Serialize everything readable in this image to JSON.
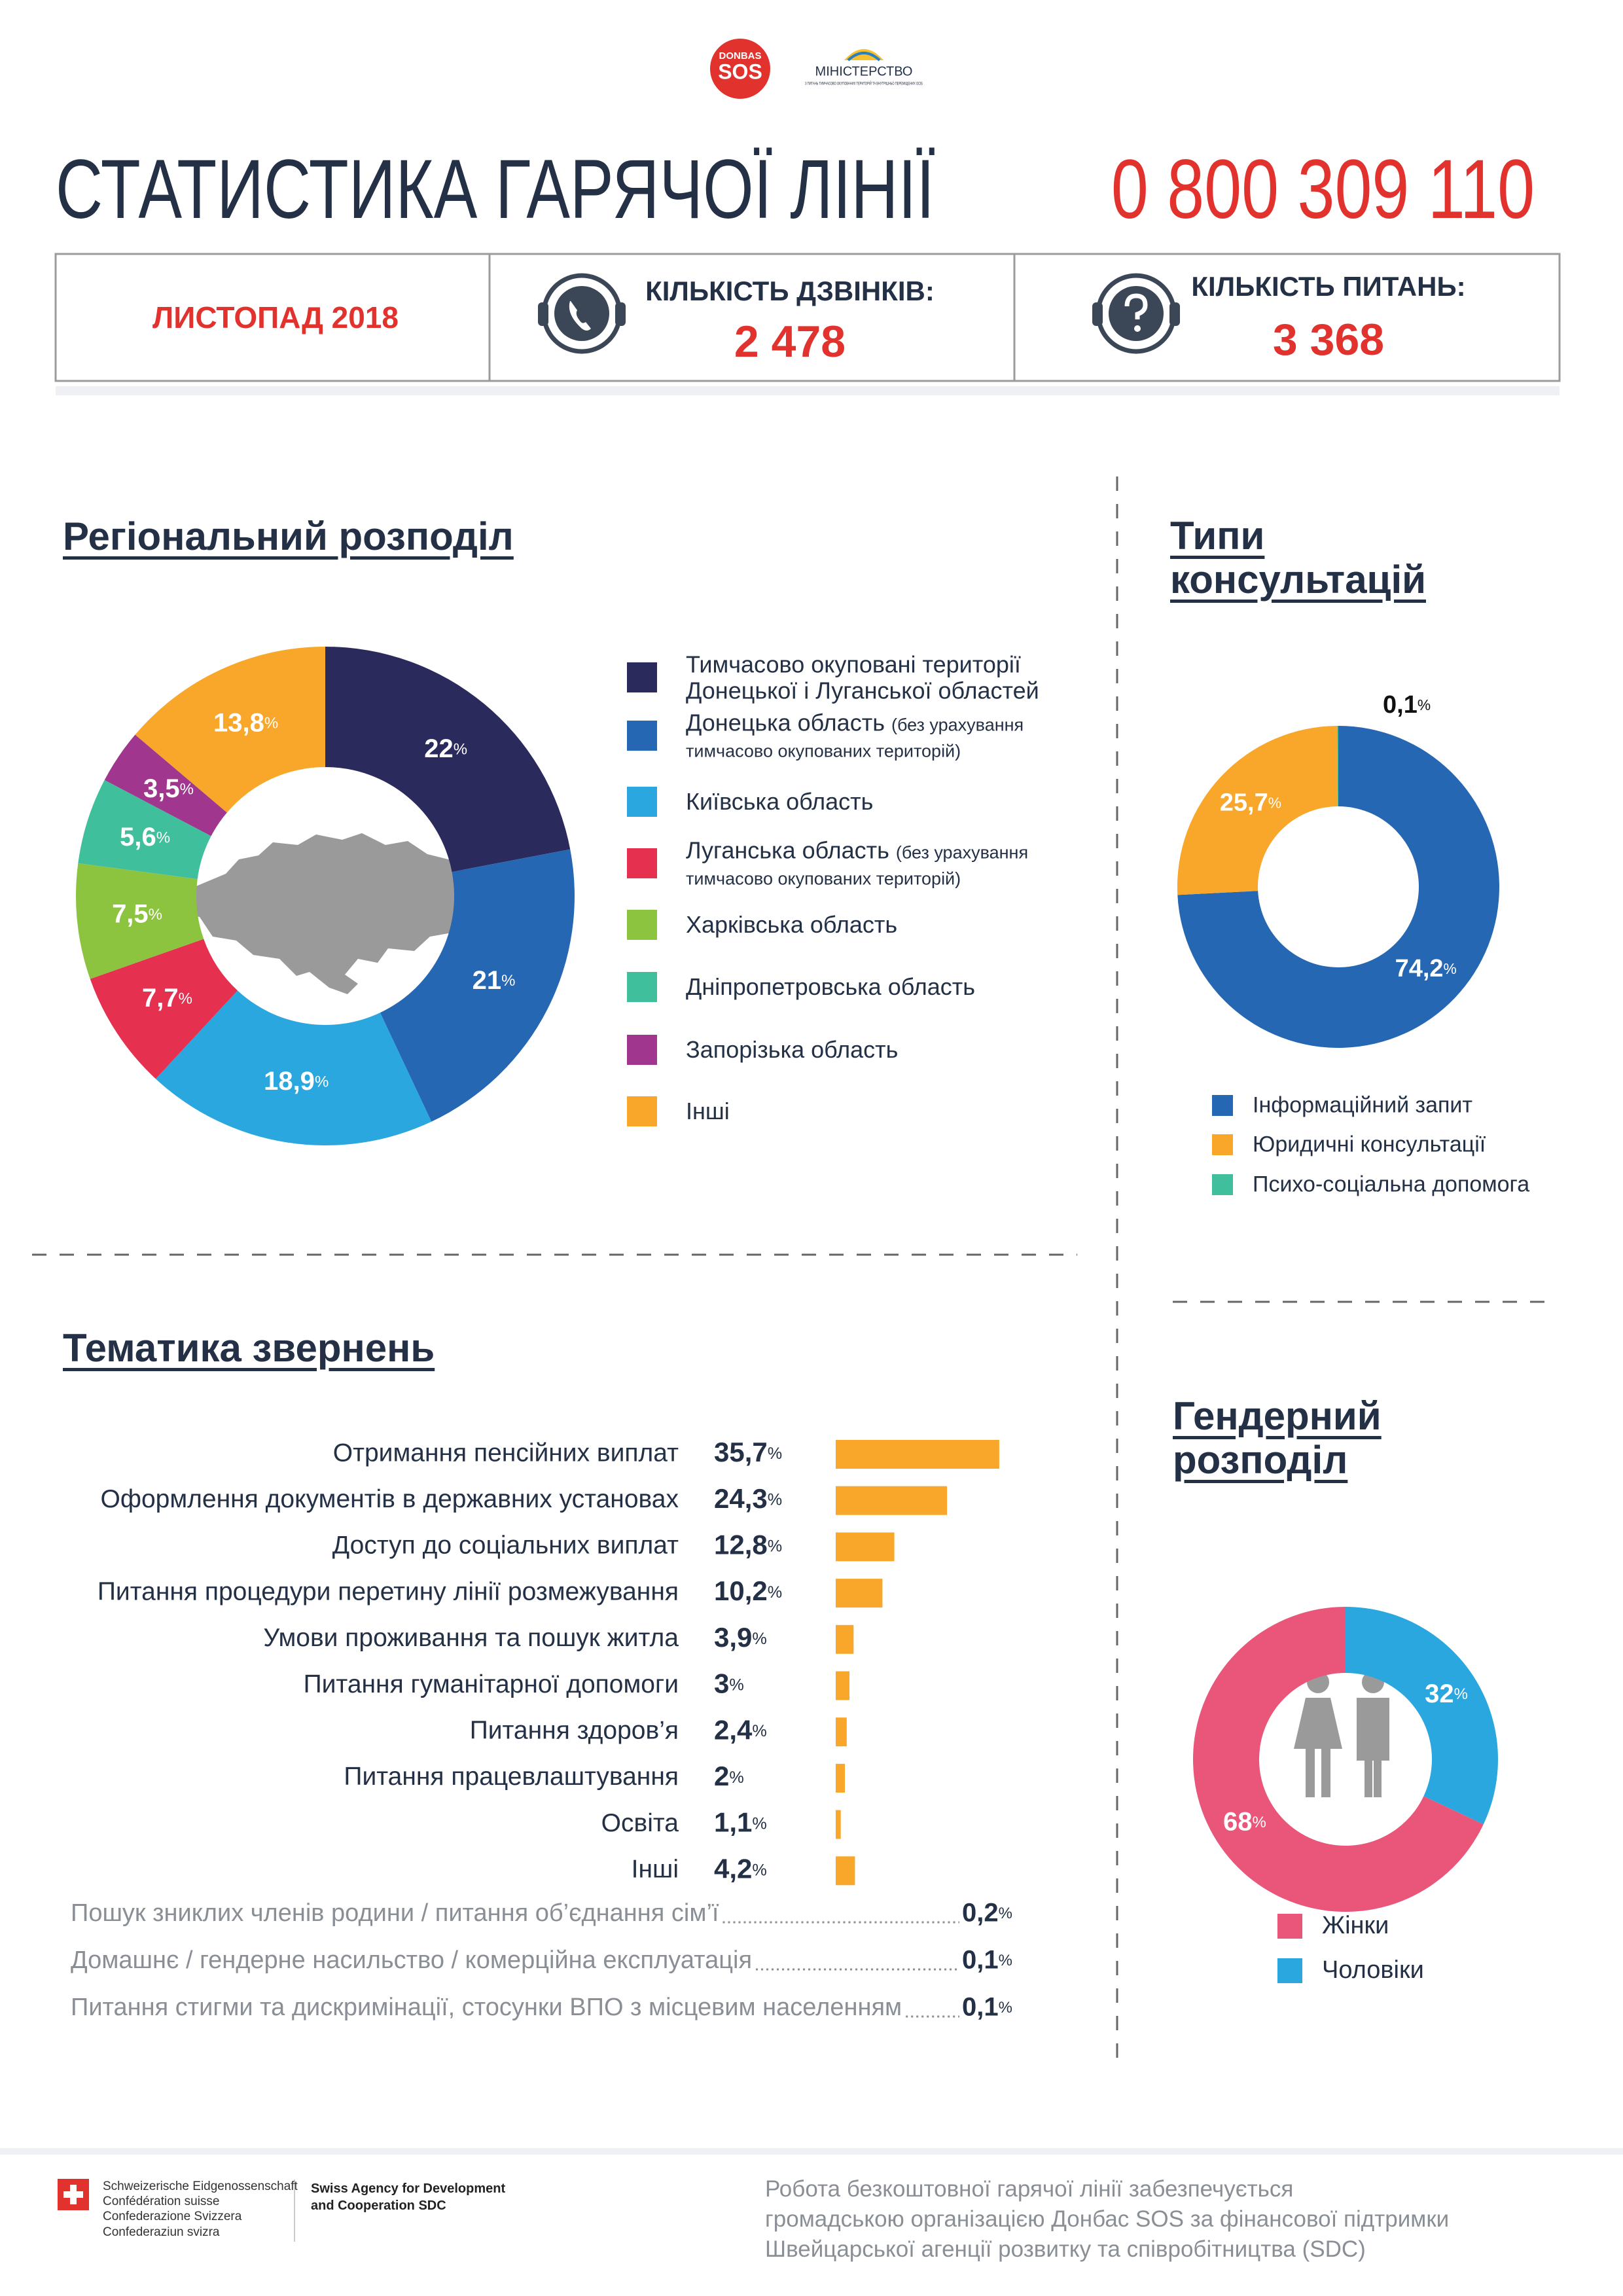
{
  "header": {
    "logo_donbas": "DONBAS",
    "logo_sos": "SOS",
    "logo_ministry": "МІНІСТЕРСТВО",
    "logo_ministry_sub": "З ПИТАНЬ ТИМЧАСОВО ОКУПОВАНИХ ТЕРИТОРІЙ ТА ВНУТРІШНЬО ПЕРЕМІЩЕНИХ ОСІБ",
    "title": "СТАТИСТИКА ГАРЯЧОЇ ЛІНІЇ",
    "phone": "0 800 309 110"
  },
  "stats": {
    "period": "ЛИСТОПАД 2018",
    "calls_label": "КІЛЬКІСТЬ ДЗВІНКІВ:",
    "calls": "2 478",
    "questions_label": "КІЛЬКІСТЬ ПИТАНЬ:",
    "questions": "3 368"
  },
  "chart_data": [
    {
      "type": "donut",
      "title": "Регіональний розподіл",
      "categories": [
        "Тимчасово окуповані території Донецької і Луганської областей",
        "Донецька область",
        "Київська область",
        "Луганська область",
        "Харківська область",
        "Дніпропетровська область",
        "Запорізька область",
        "Інші"
      ],
      "category_notes": [
        null,
        "(без урахування тимчасово окупованих територій)",
        null,
        "(без урахування тимчасово окупованих територій)",
        null,
        null,
        null,
        null
      ],
      "values": [
        22,
        21,
        18.9,
        7.7,
        7.5,
        5.6,
        3.5,
        13.8
      ],
      "value_labels": [
        "22%",
        "21%",
        "18,9%",
        "7,7%",
        "7,5%",
        "5,6%",
        "3,5%",
        "13,8%"
      ],
      "colors": [
        "#2b2a5c",
        "#2567b2",
        "#2aa7df",
        "#e5304f",
        "#8cc440",
        "#3fbf9b",
        "#a1368f",
        "#f8a72b"
      ]
    },
    {
      "type": "donut",
      "title": "Типи консультацій",
      "categories": [
        "Інформаційний запит",
        "Юридичні консультації",
        "Психо-соціальна допомога"
      ],
      "values": [
        74.2,
        25.7,
        0.1
      ],
      "value_labels": [
        "74,2%",
        "25,7%",
        "0,1%"
      ],
      "colors": [
        "#2567b2",
        "#f8a72b",
        "#3fbf9b"
      ]
    },
    {
      "type": "bar",
      "title": "Тематика звернень",
      "categories": [
        "Отримання пенсійних виплат",
        "Оформлення документів в державних установах",
        "Доступ до соціальних виплат",
        "Питання процедури перетину лінії розмежування",
        "Умови проживання та пошук житла",
        "Питання гуманітарної допомоги",
        "Питання здоров’я",
        "Питання працевлаштування",
        "Освіта",
        "Інші"
      ],
      "values": [
        35.7,
        24.3,
        12.8,
        10.2,
        3.9,
        3,
        2.4,
        2,
        1.1,
        4.2
      ],
      "value_labels": [
        "35,7%",
        "24,3%",
        "12,8%",
        "10,2%",
        "3,9%",
        "3%",
        "2,4%",
        "2%",
        "1,1%",
        "4,2%"
      ],
      "color": "#f8a72b"
    },
    {
      "type": "donut",
      "title": "Гендерний розподіл",
      "categories": [
        "Жінки",
        "Чоловіки"
      ],
      "values": [
        68,
        32
      ],
      "value_labels": [
        "68%",
        "32%"
      ],
      "colors": [
        "#e9567a",
        "#2aa7df"
      ]
    }
  ],
  "other_topics": [
    {
      "label": "Пошук зниклих членів родини / питання об’єднання сім’ї",
      "value": "0,2%"
    },
    {
      "label": "Домашнє / гендерне насильство / комерційна експлуатація",
      "value": "0,1%"
    },
    {
      "label": "Питання стигми та дискримінації, стосунки ВПО з місцевим населенням",
      "value": "0,1%"
    }
  ],
  "footer": {
    "swiss_lines": [
      "Schweizerische Eidgenossenschaft",
      "Confédération suisse",
      "Confederazione Svizzera",
      "Confederaziun svizra"
    ],
    "sdc_lines": [
      "Swiss Agency for Development",
      "and Cooperation SDC"
    ],
    "note_lines": [
      "Робота безкоштовної гарячої лінії забезпечується",
      "громадською організацією Донбас SOS за фінансової підтримки",
      "Швейцарської агенції розвитку та співробітництва (SDC)"
    ]
  }
}
